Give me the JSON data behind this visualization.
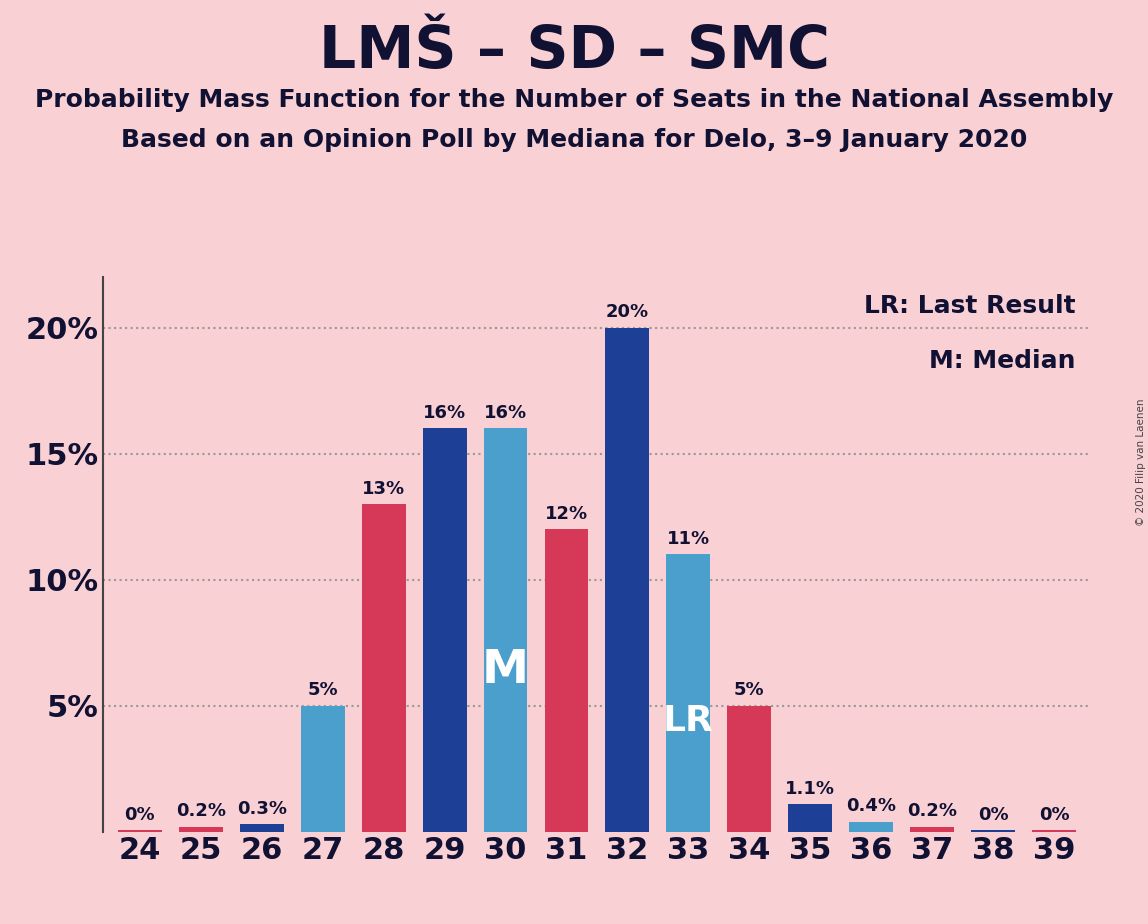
{
  "title": "LMŠ – SD – SMC",
  "subtitle1": "Probability Mass Function for the Number of Seats in the National Assembly",
  "subtitle2": "Based on an Opinion Poll by Mediana for Delo, 3–9 January 2020",
  "copyright": "© 2020 Filip van Laenen",
  "categories": [
    24,
    25,
    26,
    27,
    28,
    29,
    30,
    31,
    32,
    33,
    34,
    35,
    36,
    37,
    38,
    39
  ],
  "values": [
    0.05,
    0.2,
    0.3,
    5.0,
    13.0,
    16.0,
    16.0,
    12.0,
    20.0,
    11.0,
    5.0,
    1.1,
    0.4,
    0.2,
    0.05,
    0.05
  ],
  "labels": [
    "0%",
    "0.2%",
    "0.3%",
    "5%",
    "13%",
    "16%",
    "16%",
    "12%",
    "20%",
    "11%",
    "5%",
    "1.1%",
    "0.4%",
    "0.2%",
    "0%",
    "0%"
  ],
  "bar_colors": [
    "#d63858",
    "#d63858",
    "#1e3f96",
    "#4a9fcc",
    "#d63858",
    "#1e3f96",
    "#4a9fcc",
    "#d63858",
    "#1e3f96",
    "#4a9fcc",
    "#d63858",
    "#1e3f96",
    "#4a9fcc",
    "#d63858",
    "#1e3f96",
    "#d63858"
  ],
  "median_idx": 6,
  "lr_idx": 9,
  "background_color": "#f9d0d4",
  "ylim_max": 22,
  "ytick_vals": [
    5,
    10,
    15,
    20
  ],
  "ytick_labels": [
    "5%",
    "10%",
    "15%",
    "20%"
  ],
  "legend_lr": "LR: Last Result",
  "legend_m": "M: Median",
  "color_navy": "#1e3f96",
  "color_steel": "#4a9fcc",
  "color_red": "#d63858",
  "title_fontsize": 42,
  "subtitle_fontsize": 18,
  "tick_fontsize": 22,
  "bar_label_fontsize": 13,
  "legend_fontsize": 18
}
